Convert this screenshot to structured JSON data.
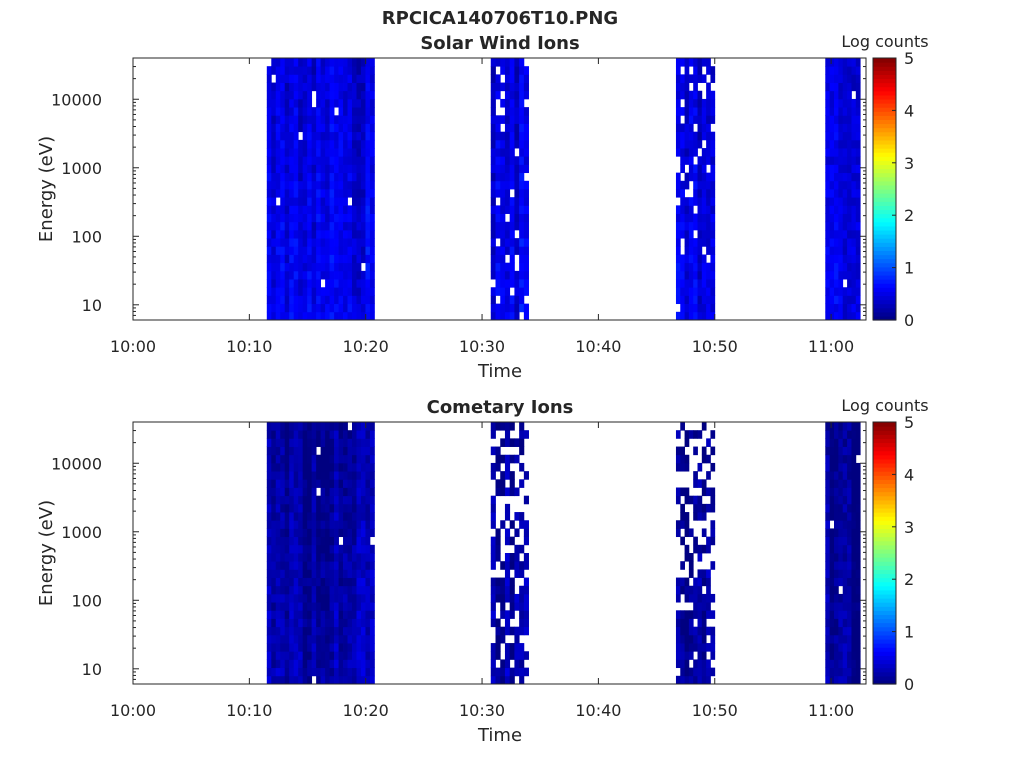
{
  "figure_title": "RPCICA140706T10.PNG",
  "chart_data": [
    {
      "type": "heatmap",
      "title": "Solar Wind Ions",
      "xlabel": "Time",
      "ylabel": "Energy (eV)",
      "y_scale": "log",
      "xlim": [
        "10:00",
        "11:03"
      ],
      "ylim": [
        6,
        40000
      ],
      "x_ticks": [
        "10:00",
        "10:10",
        "10:20",
        "10:30",
        "10:40",
        "10:50",
        "11:00"
      ],
      "y_ticks": [
        10,
        100,
        1000,
        10000
      ],
      "y_tick_labels": [
        "10",
        "100",
        "1000",
        "10000"
      ],
      "colorbar": {
        "label": "Log counts",
        "range": [
          0,
          5
        ],
        "ticks": [
          "0",
          "1",
          "2",
          "3",
          "4",
          "5"
        ],
        "colormap": "jet"
      },
      "data_blocks": [
        {
          "start": "10:11:30",
          "end": "10:20:45",
          "log_counts": 0.55,
          "sparsity": "dense"
        },
        {
          "start": "10:30:45",
          "end": "10:34:00",
          "log_counts": 0.55,
          "sparsity": "patchy"
        },
        {
          "start": "10:46:40",
          "end": "10:50:00",
          "log_counts": 0.5,
          "sparsity": "patchy"
        },
        {
          "start": "10:59:30",
          "end": "11:02:30",
          "log_counts": 0.5,
          "sparsity": "dense"
        }
      ]
    },
    {
      "type": "heatmap",
      "title": "Cometary Ions",
      "xlabel": "Time",
      "ylabel": "Energy (eV)",
      "y_scale": "log",
      "xlim": [
        "10:00",
        "11:03"
      ],
      "ylim": [
        6,
        40000
      ],
      "x_ticks": [
        "10:00",
        "10:10",
        "10:20",
        "10:30",
        "10:40",
        "10:50",
        "11:00"
      ],
      "y_ticks": [
        10,
        100,
        1000,
        10000
      ],
      "y_tick_labels": [
        "10",
        "100",
        "1000",
        "10000"
      ],
      "colorbar": {
        "label": "Log counts",
        "range": [
          0,
          5
        ],
        "ticks": [
          "0",
          "1",
          "2",
          "3",
          "4",
          "5"
        ],
        "colormap": "jet"
      },
      "data_blocks": [
        {
          "start": "10:11:30",
          "end": "10:20:45",
          "log_counts": 0.25,
          "sparsity": "dense"
        },
        {
          "start": "10:30:45",
          "end": "10:34:00",
          "log_counts": 0.2,
          "sparsity": "sparse"
        },
        {
          "start": "10:46:40",
          "end": "10:50:00",
          "log_counts": 0.2,
          "sparsity": "sparse"
        },
        {
          "start": "10:59:30",
          "end": "11:02:30",
          "log_counts": 0.15,
          "sparsity": "dense"
        }
      ]
    }
  ]
}
